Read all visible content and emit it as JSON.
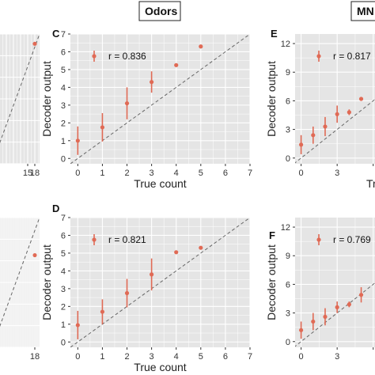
{
  "headers": [
    {
      "id": "odors",
      "label": "Odors"
    },
    {
      "id": "mnist",
      "label": "MN"
    }
  ],
  "colors": {
    "panel_bg": "#e5e5e5",
    "grid": "#ffffff",
    "point": "#e06a55",
    "diagonal": "#666666"
  },
  "chart_data": [
    {
      "id": "left-top",
      "type": "scatter",
      "panel_label": "",
      "xlabel": "",
      "ylabel": "",
      "x_ticks": [
        15,
        18
      ],
      "x_tick_labels": [
        "15",
        "18"
      ],
      "y_ticks": [],
      "xlim": [
        0,
        20
      ],
      "ylim": [
        0,
        20
      ],
      "legend_label": "",
      "diagonal": true,
      "points": [
        {
          "x": 18,
          "y": 18.5,
          "err": 0
        }
      ]
    },
    {
      "id": "C",
      "type": "scatter",
      "panel_label": "C",
      "xlabel": "True count",
      "ylabel": "Decoder output",
      "x_ticks": [
        0,
        1,
        2,
        3,
        4,
        5,
        6,
        7
      ],
      "y_ticks": [
        0,
        1,
        2,
        3,
        4,
        5,
        6,
        7
      ],
      "xlim": [
        -0.3,
        7
      ],
      "ylim": [
        -0.3,
        7
      ],
      "legend_label": "r = 0.836",
      "diagonal": true,
      "points": [
        {
          "x": 0,
          "y": 1.0,
          "err": 0.8
        },
        {
          "x": 1,
          "y": 1.75,
          "err": 0.8
        },
        {
          "x": 2,
          "y": 3.1,
          "err": 0.9
        },
        {
          "x": 3,
          "y": 4.3,
          "err": 0.6
        },
        {
          "x": 4,
          "y": 5.25,
          "err": 0.1
        },
        {
          "x": 5,
          "y": 6.3,
          "err": 0.05
        }
      ]
    },
    {
      "id": "E",
      "type": "scatter",
      "panel_label": "E",
      "xlabel": "True",
      "ylabel": "Decoder output",
      "x_ticks": [
        0,
        3,
        6
      ],
      "x_tick_labels": [
        "0",
        "3",
        ""
      ],
      "y_ticks": [
        0,
        3,
        6,
        9,
        12
      ],
      "xlim": [
        -0.5,
        7.4
      ],
      "ylim": [
        -0.6,
        13
      ],
      "legend_label": "r = 0.817",
      "diagonal": true,
      "points": [
        {
          "x": 0,
          "y": 1.4,
          "err": 1.0
        },
        {
          "x": 1,
          "y": 2.4,
          "err": 0.9
        },
        {
          "x": 2,
          "y": 3.3,
          "err": 1.0
        },
        {
          "x": 3,
          "y": 4.6,
          "err": 0.9
        },
        {
          "x": 4,
          "y": 4.8,
          "err": 0.3
        },
        {
          "x": 5,
          "y": 6.2,
          "err": 0.2
        }
      ]
    },
    {
      "id": "left-bottom",
      "type": "scatter",
      "panel_label": "",
      "xlabel": "",
      "ylabel": "",
      "x_ticks": [
        18
      ],
      "x_tick_labels": [
        "18"
      ],
      "y_ticks": [],
      "xlim": [
        0,
        20
      ],
      "ylim": [
        0,
        20
      ],
      "legend_label": "",
      "diagonal": true,
      "points": [
        {
          "x": 18,
          "y": 14.2,
          "err": 0
        }
      ]
    },
    {
      "id": "D",
      "type": "scatter",
      "panel_label": "D",
      "xlabel": "True count",
      "ylabel": "Decoder output",
      "x_ticks": [
        0,
        1,
        2,
        3,
        4,
        5,
        6,
        7
      ],
      "y_ticks": [
        0,
        1,
        2,
        3,
        4,
        5,
        6,
        7
      ],
      "xlim": [
        -0.3,
        7
      ],
      "ylim": [
        -0.3,
        7
      ],
      "legend_label": "r = 0.821",
      "diagonal": true,
      "points": [
        {
          "x": 0,
          "y": 0.95,
          "err": 0.8
        },
        {
          "x": 1,
          "y": 1.7,
          "err": 0.7
        },
        {
          "x": 2,
          "y": 2.75,
          "err": 0.8
        },
        {
          "x": 3,
          "y": 3.8,
          "err": 0.9
        },
        {
          "x": 4,
          "y": 5.05,
          "err": 0.05
        },
        {
          "x": 5,
          "y": 5.3,
          "err": 0.05
        }
      ]
    },
    {
      "id": "F",
      "type": "scatter",
      "panel_label": "F",
      "xlabel": "",
      "ylabel": "Decoder output",
      "x_ticks": [
        0,
        3,
        6
      ],
      "x_tick_labels": [
        "0",
        "3",
        ""
      ],
      "y_ticks": [
        0,
        3,
        6,
        9,
        12
      ],
      "xlim": [
        -0.5,
        7.4
      ],
      "ylim": [
        -0.6,
        13
      ],
      "legend_label": "r = 0.769",
      "diagonal": true,
      "points": [
        {
          "x": 0,
          "y": 1.2,
          "err": 0.9
        },
        {
          "x": 1,
          "y": 2.1,
          "err": 0.9
        },
        {
          "x": 2,
          "y": 2.6,
          "err": 0.9
        },
        {
          "x": 3,
          "y": 3.6,
          "err": 0.6
        },
        {
          "x": 4,
          "y": 3.9,
          "err": 0.3
        },
        {
          "x": 5,
          "y": 4.9,
          "err": 0.8
        }
      ]
    }
  ]
}
